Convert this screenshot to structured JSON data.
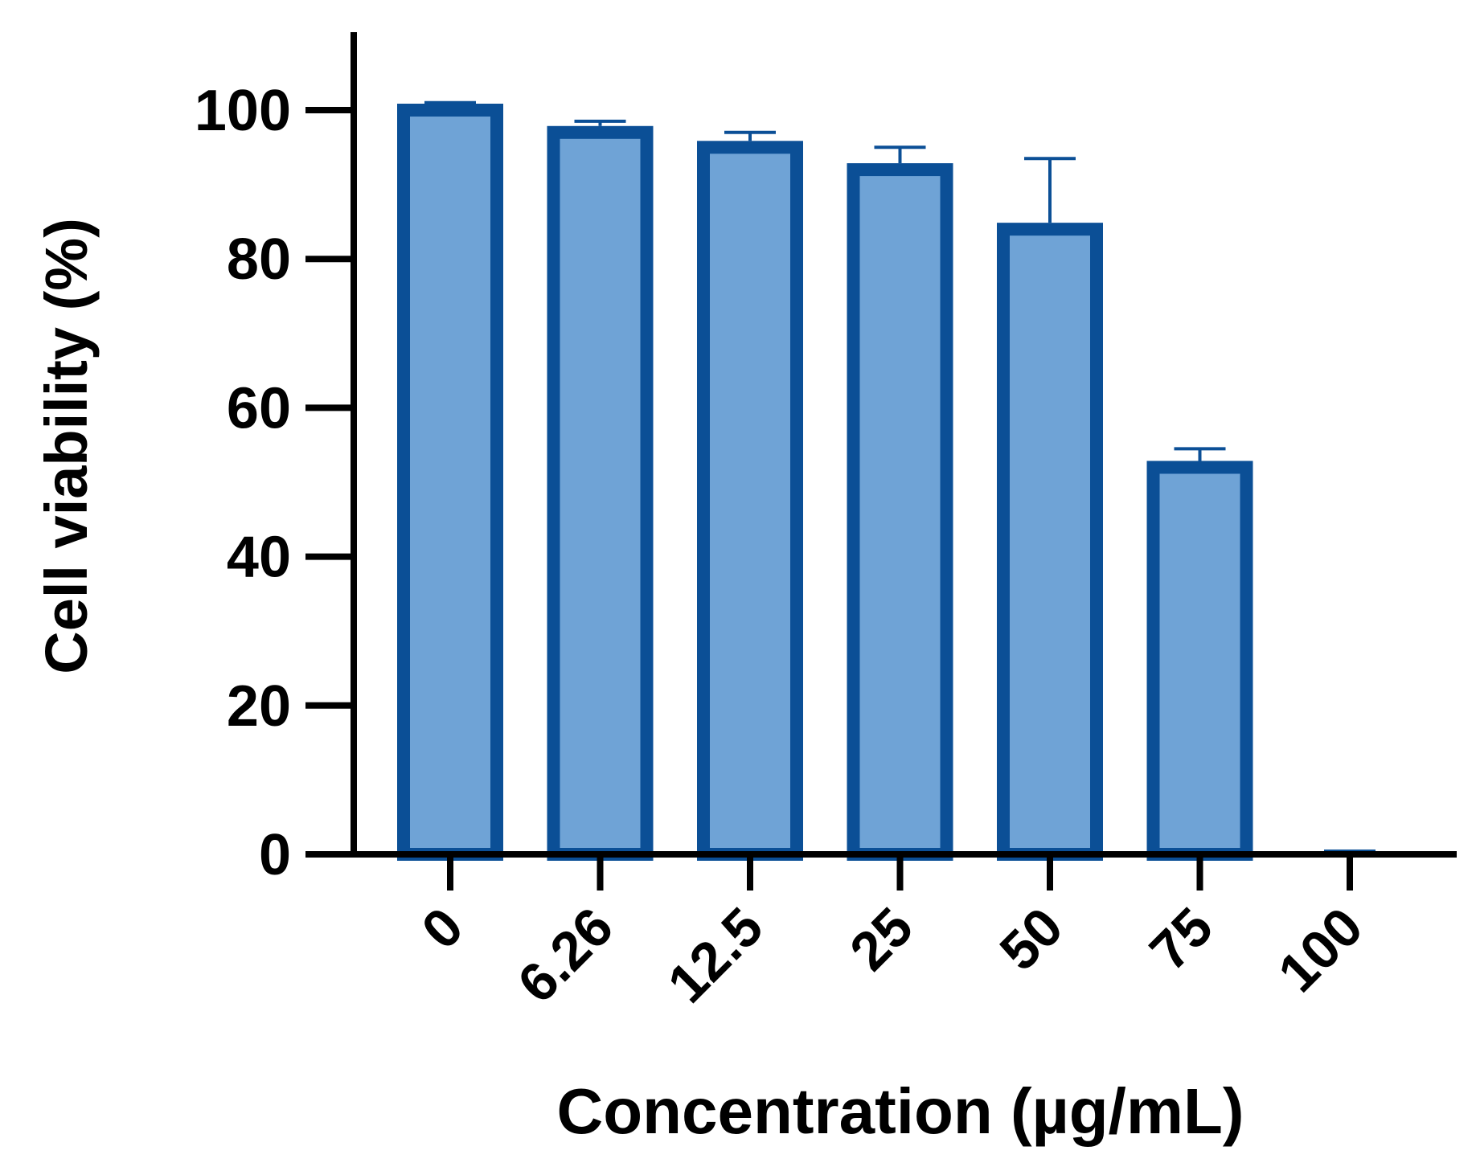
{
  "chart_data": {
    "type": "bar",
    "title": "",
    "xlabel": "Concentration (µg/mL)",
    "ylabel": "Cell viability (%)",
    "categories": [
      "0",
      "6.26",
      "12.5",
      "25",
      "50",
      "75",
      "100"
    ],
    "values": [
      100,
      97,
      95,
      92,
      84,
      52,
      0
    ],
    "error_upper": [
      1,
      1.5,
      2,
      3,
      9.5,
      2.5,
      0
    ],
    "ylim": [
      0,
      110
    ],
    "yticks": [
      "0",
      "20",
      "40",
      "60",
      "80",
      "100"
    ],
    "grid": false,
    "legend": "none",
    "colors": {
      "bar_fill": "#6fa3d6",
      "bar_stroke": "#0b4f96",
      "error_bar": "#0b4f96",
      "axis": "#000000"
    }
  }
}
